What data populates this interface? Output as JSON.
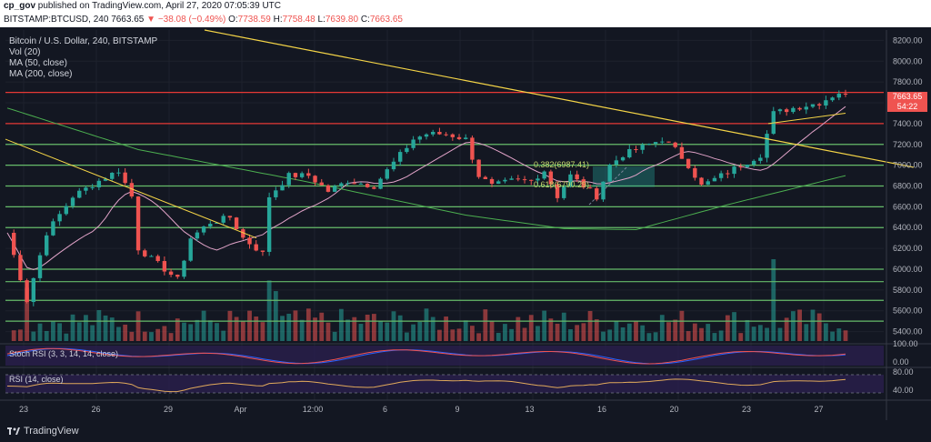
{
  "header": {
    "author": "cp_gov",
    "published_text": "published on TradingView.com, April 27, 2020 07:05:39 UTC"
  },
  "ohlc_bar": {
    "symbol": "BITSTAMP:BTCUSD, 240",
    "last": "7663.65",
    "change_icon": "down-triangle-icon",
    "change": "−38.08 (−0.49%)",
    "open_label": "O:",
    "open": "7738.59",
    "high_label": "H:",
    "high": "7758.48",
    "low_label": "L:",
    "low": "7639.80",
    "close_label": "C:",
    "close": "7663.65"
  },
  "legend": {
    "title": "Bitcoin / U.S. Dollar, 240, BITSTAMP",
    "vol": "Vol (20)",
    "ma50": "MA (50, close)",
    "ma200": "MA (200, close)"
  },
  "price_tags": {
    "last": "7663.65",
    "countdown": "54:22"
  },
  "footer": {
    "brand": "TradingView"
  },
  "colors": {
    "background": "#131722",
    "grid": "#1e222d",
    "up": "#26a69a",
    "down": "#ef5350",
    "resistance": "#e53935",
    "support": "#66bb6a",
    "trendline": "#f5d547",
    "ma50": "#e1a3c8",
    "ma200": "#4caf50",
    "stoch_k": "#2962ff",
    "stoch_d": "#ef5350",
    "rsi": "#e0a95b",
    "pane": "#2a1f4d"
  },
  "chart_data": {
    "type": "candlestick",
    "title": "Bitcoin / U.S. Dollar, 240, BITSTAMP",
    "x_tick_labels": [
      "23",
      "26",
      "29",
      "Apr",
      "12:00",
      "6",
      "9",
      "13",
      "16",
      "20",
      "23",
      "27"
    ],
    "y_tick_labels": [
      "8200.00",
      "8000.00",
      "7800.00",
      "7600.00",
      "7400.00",
      "7200.00",
      "7000.00",
      "6800.00",
      "6600.00",
      "6400.00",
      "6200.00",
      "6000.00",
      "5800.00",
      "5600.00",
      "5400.00"
    ],
    "ylim": [
      5300,
      8300
    ],
    "price_path": [
      [
        0,
        6350
      ],
      [
        3,
        5700
      ],
      [
        6,
        6350
      ],
      [
        10,
        6700
      ],
      [
        14,
        6850
      ],
      [
        17,
        6950
      ],
      [
        19,
        6700
      ],
      [
        20,
        6200
      ],
      [
        22,
        6100
      ],
      [
        25,
        5950
      ],
      [
        26,
        5900
      ],
      [
        28,
        6300
      ],
      [
        31,
        6450
      ],
      [
        34,
        6500
      ],
      [
        36,
        6300
      ],
      [
        39,
        6150
      ],
      [
        40,
        6700
      ],
      [
        43,
        6900
      ],
      [
        46,
        6900
      ],
      [
        49,
        6750
      ],
      [
        52,
        6850
      ],
      [
        56,
        6800
      ],
      [
        58,
        6950
      ],
      [
        60,
        7100
      ],
      [
        62,
        7250
      ],
      [
        64,
        7300
      ],
      [
        67,
        7300
      ],
      [
        70,
        7250
      ],
      [
        72,
        6900
      ],
      [
        74,
        6800
      ],
      [
        77,
        6850
      ],
      [
        80,
        6850
      ],
      [
        82,
        6950
      ],
      [
        84,
        6700
      ],
      [
        86,
        6900
      ],
      [
        88,
        6800
      ],
      [
        90,
        6700
      ],
      [
        92,
        7000
      ],
      [
        94,
        7100
      ],
      [
        96,
        7150
      ],
      [
        98,
        7200
      ],
      [
        100,
        7250
      ],
      [
        102,
        7150
      ],
      [
        104,
        7000
      ],
      [
        106,
        6800
      ],
      [
        109,
        6900
      ],
      [
        112,
        7000
      ],
      [
        115,
        7100
      ],
      [
        117,
        7500
      ],
      [
        120,
        7550
      ],
      [
        124,
        7600
      ],
      [
        127,
        7700
      ],
      [
        128,
        7663
      ]
    ],
    "annotations": [
      {
        "text": "0.382(6987.41)"
      },
      {
        "text": "0.618(6790.29)"
      }
    ],
    "horizontal_levels": [
      {
        "price": 7700,
        "kind": "resistance"
      },
      {
        "price": 7400,
        "kind": "resistance"
      },
      {
        "price": 7200,
        "kind": "support"
      },
      {
        "price": 7000,
        "kind": "support"
      },
      {
        "price": 6800,
        "kind": "support"
      },
      {
        "price": 6600,
        "kind": "support"
      },
      {
        "price": 6400,
        "kind": "support"
      },
      {
        "price": 6000,
        "kind": "support"
      },
      {
        "price": 5880,
        "kind": "support"
      },
      {
        "price": 5700,
        "kind": "support"
      },
      {
        "price": 5500,
        "kind": "support"
      }
    ],
    "stoch_rsi": {
      "title": "Stoch RSI (3, 3, 14, 14, close)",
      "tick_labels": [
        "100.00",
        "0.00"
      ]
    },
    "rsi": {
      "title": "RSI (14, close)",
      "tick_labels": [
        "80.00",
        "40.00"
      ]
    }
  }
}
